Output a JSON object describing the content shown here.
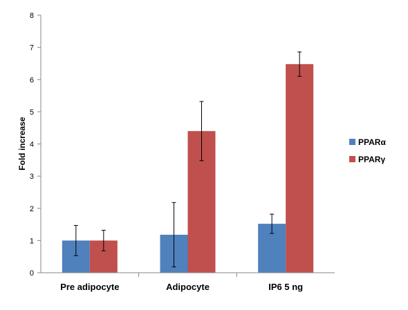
{
  "chart_data": {
    "type": "bar",
    "title": "",
    "xlabel": "",
    "ylabel": "Fold increase",
    "ylim": [
      0,
      8
    ],
    "yticks": [
      0,
      1,
      2,
      3,
      4,
      5,
      6,
      7,
      8
    ],
    "categories": [
      "Pre adipocyte",
      "Adipocyte",
      "IP6 5 ng"
    ],
    "series": [
      {
        "name": "PPARα",
        "color": "#4F81BD",
        "values": [
          1.0,
          1.18,
          1.52
        ],
        "errors": [
          0.47,
          1.0,
          0.3
        ]
      },
      {
        "name": "PPARγ",
        "color": "#C0504D",
        "values": [
          1.0,
          4.4,
          6.48
        ],
        "errors": [
          0.32,
          0.92,
          0.38
        ]
      }
    ],
    "legend_position": "right",
    "grid": false
  }
}
